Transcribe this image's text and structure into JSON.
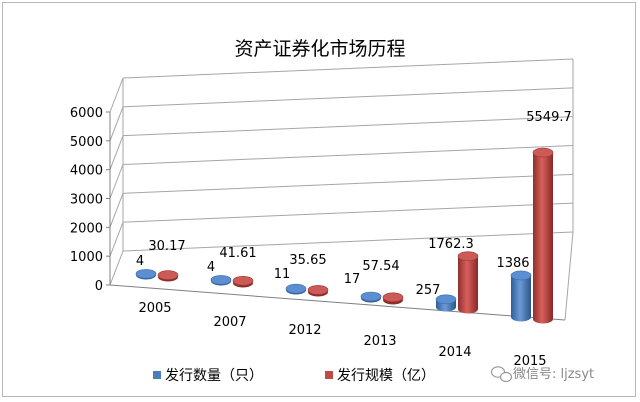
{
  "chart_data": {
    "type": "bar",
    "title": "资产证券化市场历程",
    "xlabel": "",
    "ylabel": "",
    "categories": [
      "2005",
      "2007",
      "2012",
      "2013",
      "2014",
      "2015"
    ],
    "series": [
      {
        "name": "发行数量（只）",
        "values": [
          4,
          4,
          11,
          17,
          257,
          1386
        ],
        "labels": [
          "4",
          "4",
          "11",
          "17",
          "257",
          "1386"
        ],
        "color": "#4a7ebb"
      },
      {
        "name": "发行规模（亿）",
        "values": [
          30.17,
          41.61,
          35.65,
          57.54,
          1762.3,
          5549.7
        ],
        "labels": [
          "30.17",
          "41.61",
          "35.65",
          "57.54",
          "1762.3",
          "5549.7"
        ],
        "color": "#be4b48"
      }
    ],
    "ylim": [
      0,
      6000
    ],
    "yticks": [
      "0",
      "1000",
      "2000",
      "3000",
      "4000",
      "5000",
      "6000"
    ],
    "grid": true,
    "legend": "bottom",
    "style": "3d-cylinder"
  },
  "watermark": "微信号: ljzsyt"
}
